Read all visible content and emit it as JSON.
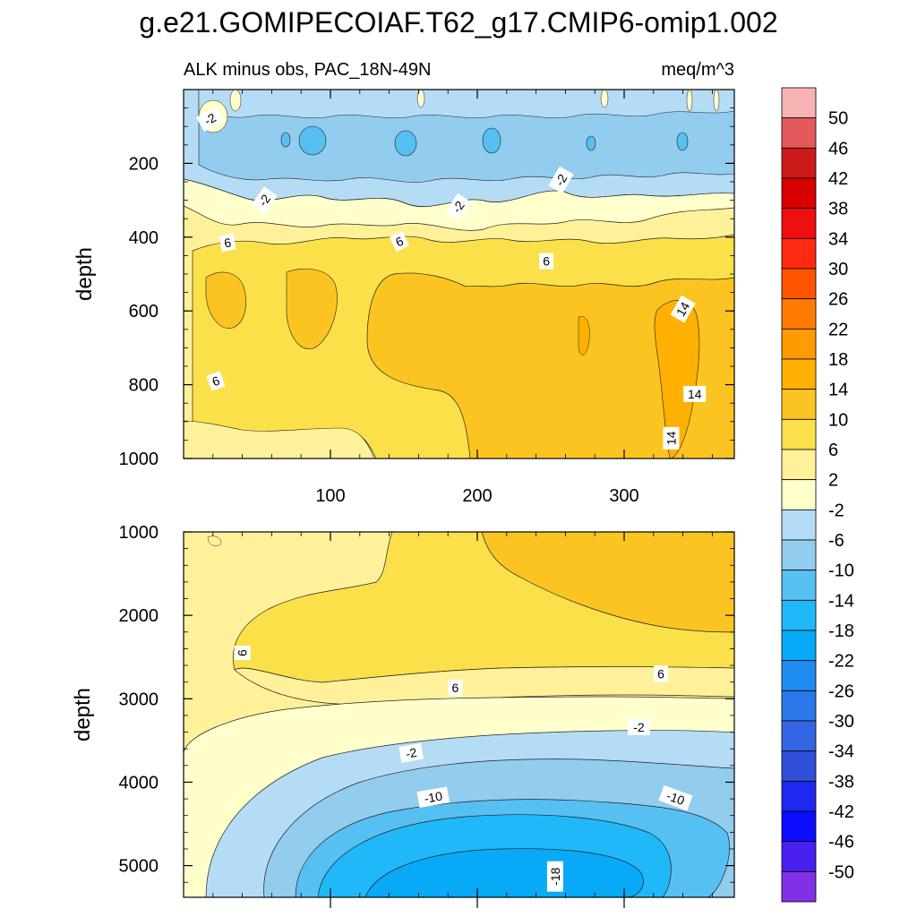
{
  "chart_data": {
    "type": "heatmap",
    "title": "g.e21.GOMIPECOIAF.T62_g17.CMIP6-omip1.002",
    "subtitle_left": "ALK minus obs, PAC_18N-49N",
    "subtitle_right": "meq/m^3",
    "colorbar": {
      "levels": [
        "50",
        "46",
        "42",
        "38",
        "34",
        "30",
        "26",
        "22",
        "18",
        "14",
        "10",
        "6",
        "2",
        "-2",
        "-6",
        "-10",
        "-14",
        "-18",
        "-22",
        "-26",
        "-30",
        "-34",
        "-38",
        "-42",
        "-46",
        "-50"
      ],
      "colors": [
        "#f7b3b3",
        "#e45a5a",
        "#cc1a1a",
        "#d80000",
        "#ee1010",
        "#ff2a12",
        "#ff5500",
        "#ff7a00",
        "#ff9a00",
        "#ffb000",
        "#fcc420",
        "#fce04a",
        "#fff19a",
        "#ffffcc",
        "#b4dcf4",
        "#92ccee",
        "#56c0f2",
        "#20b8f8",
        "#08aaf8",
        "#1e8cf0",
        "#2a78ea",
        "#3466e4",
        "#3050da",
        "#1e28f0",
        "#0c0cff",
        "#4a20f0",
        "#8230e8"
      ]
    },
    "panels": [
      {
        "name": "upper",
        "ylabel": "depth",
        "ylim": [
          0,
          1000
        ],
        "y_reversed": true,
        "yticks": [
          "200",
          "400",
          "600",
          "800",
          "1000"
        ],
        "xlim": [
          0,
          375
        ],
        "xticks": [
          "100",
          "200",
          "300"
        ],
        "contour_labels": [
          {
            "text": "-2",
            "x": 18,
            "y": 80,
            "rot": -30
          },
          {
            "text": "-2",
            "x": 55,
            "y": 300,
            "rot": -55
          },
          {
            "text": "-2",
            "x": 187,
            "y": 318,
            "rot": -55
          },
          {
            "text": "-2",
            "x": 257,
            "y": 245,
            "rot": -60
          },
          {
            "text": "6",
            "x": 30,
            "y": 415,
            "rot": -10
          },
          {
            "text": "6",
            "x": 147,
            "y": 412,
            "rot": -25
          },
          {
            "text": "6",
            "x": 247,
            "y": 465,
            "rot": 0
          },
          {
            "text": "6",
            "x": 22,
            "y": 790,
            "rot": -20
          },
          {
            "text": "14",
            "x": 340,
            "y": 595,
            "rot": -60
          },
          {
            "text": "14",
            "x": 348,
            "y": 825,
            "rot": 0
          },
          {
            "text": "14",
            "x": 332,
            "y": 945,
            "rot": -90
          }
        ]
      },
      {
        "name": "lower",
        "ylabel": "depth",
        "ylim": [
          1000,
          5380
        ],
        "y_reversed": true,
        "yticks": [
          "1000",
          "2000",
          "3000",
          "4000",
          "5000"
        ],
        "xlim": [
          0,
          375
        ],
        "xticks": [],
        "contour_labels": [
          {
            "text": "6",
            "x": 40,
            "y": 2450,
            "rot": -90
          },
          {
            "text": "6",
            "x": 185,
            "y": 2870,
            "rot": 0
          },
          {
            "text": "6",
            "x": 325,
            "y": 2700,
            "rot": 0
          },
          {
            "text": "-2",
            "x": 155,
            "y": 3650,
            "rot": -10
          },
          {
            "text": "-2",
            "x": 310,
            "y": 3340,
            "rot": 0
          },
          {
            "text": "-10",
            "x": 170,
            "y": 4180,
            "rot": -10
          },
          {
            "text": "-10",
            "x": 335,
            "y": 4190,
            "rot": 20
          },
          {
            "text": "-18",
            "x": 253,
            "y": 5130,
            "rot": -90
          }
        ]
      }
    ]
  }
}
